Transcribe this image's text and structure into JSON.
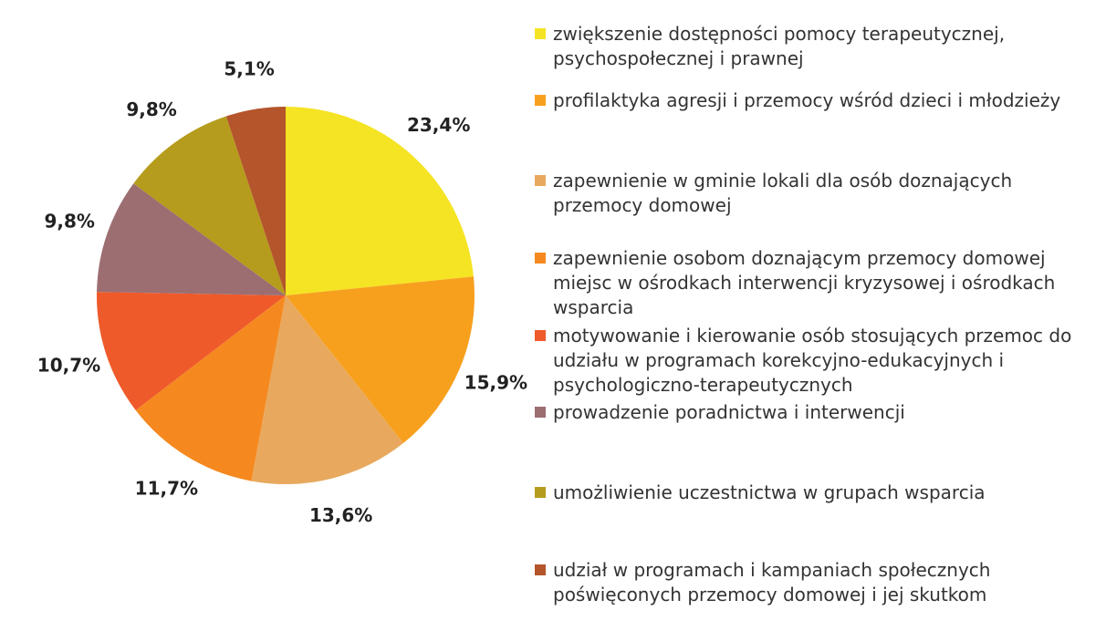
{
  "chart_data": {
    "type": "pie",
    "categories": [
      "zwiększenie dostępności pomocy terapeutycznej, psychospołecznej i prawnej",
      "profilaktyka agresji i przemocy wśród dzieci i młodzieży",
      "zapewnienie w gminie lokali dla osób doznających przemocy domowej",
      "zapewnienie osobom doznającym przemocy domowej miejsc w ośrodkach interwencji kryzysowej i ośrodkach wsparcia",
      "motywowanie i kierowanie osób stosujących przemoc do udziału w programach korekcyjno-edukacyjnych i psychologiczno-terapeutycznych",
      "prowadzenie poradnictwa i interwencji",
      "umożliwienie uczestnictwa w grupach wsparcia",
      "udział w programach i kampaniach społecznych poświęconych przemocy domowej i jej skutkom"
    ],
    "values": [
      23.4,
      15.9,
      13.6,
      11.7,
      10.7,
      9.8,
      9.8,
      5.1
    ],
    "value_labels": [
      "23,4%",
      "15,9%",
      "13,6%",
      "11,7%",
      "10,7%",
      "9,8%",
      "9,8%",
      "5,1%"
    ],
    "colors": [
      "#f5e424",
      "#f7a01e",
      "#e8a95e",
      "#f5891f",
      "#ef5a2b",
      "#9c6e72",
      "#b59c1c",
      "#b4552b"
    ],
    "legend": "right"
  }
}
